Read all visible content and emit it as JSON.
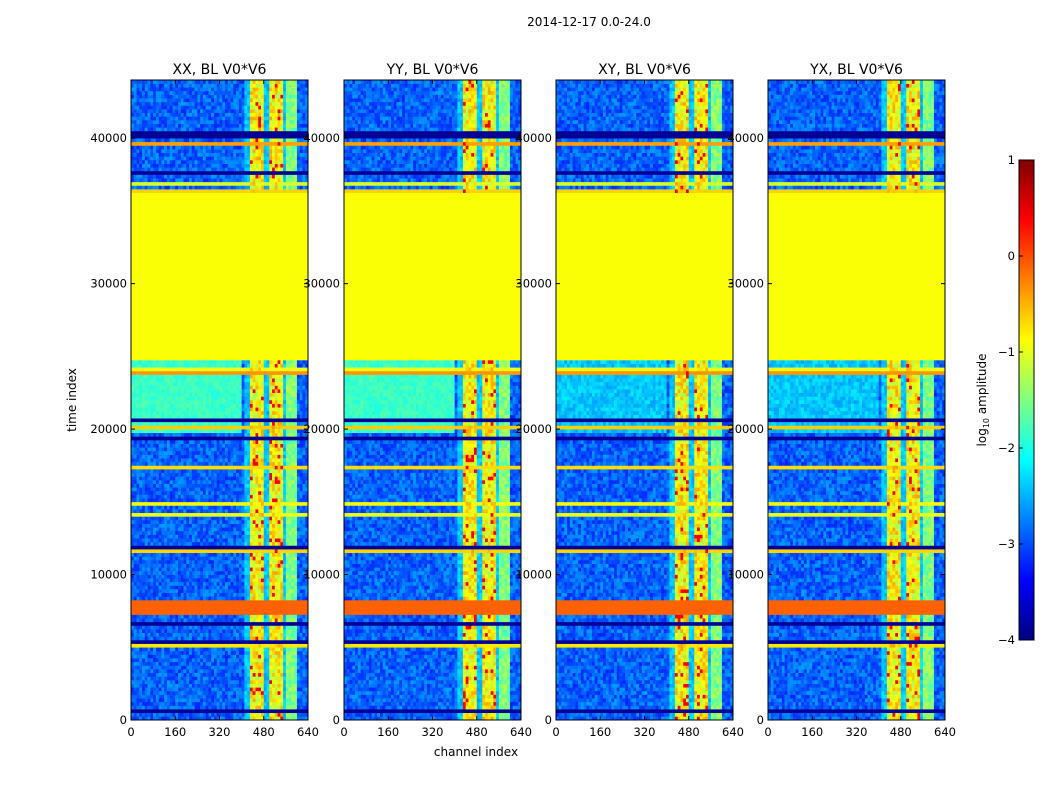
{
  "figure": {
    "suptitle": "2014-12-17 0.0-24.0"
  },
  "chart_data": {
    "type": "heatmap",
    "title": "2014-12-17 0.0-24.0",
    "xlabel": "channel index",
    "ylabel": "time index",
    "xlim": [
      0,
      640
    ],
    "ylim": [
      0,
      44000
    ],
    "xticks": [
      0,
      160,
      320,
      480,
      640
    ],
    "yticks": [
      0,
      10000,
      20000,
      30000,
      40000
    ],
    "xtick_labels": [
      "0",
      "160",
      "320",
      "480",
      "640"
    ],
    "ytick_labels": [
      "0",
      "10000",
      "20000",
      "30000",
      "40000"
    ],
    "colorbar": {
      "label": "log10 amplitude",
      "range": [
        -4,
        1
      ],
      "ticks": [
        1,
        0,
        -1,
        -2,
        -3,
        -4
      ],
      "tick_labels": [
        "1",
        "0",
        "−1",
        "−2",
        "−3",
        "−4"
      ],
      "colors": [
        "#000080",
        "#0000ff",
        "#0080ff",
        "#00ffff",
        "#80ff80",
        "#ffff00",
        "#ff8000",
        "#ff0000",
        "#800000"
      ]
    },
    "panels": [
      {
        "title": "XX, BL V0*V6",
        "polarization": "XX"
      },
      {
        "title": "YY, BL V0*V6",
        "polarization": "YY"
      },
      {
        "title": "XY, BL V0*V6",
        "polarization": "XY"
      },
      {
        "title": "YX, BL V0*V6",
        "polarization": "YX"
      }
    ],
    "regions": {
      "flagged_time_range": [
        24800,
        36300
      ],
      "flagged_value_log10": -0.9,
      "high_amplitude_channel_range": [
        410,
        560
      ],
      "strong_rfi_time_band": [
        7500,
        8000
      ]
    }
  }
}
